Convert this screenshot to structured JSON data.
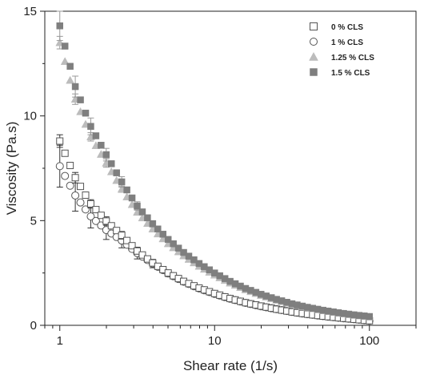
{
  "chart_data": {
    "type": "scatter",
    "title": "",
    "xlabel": "Shear rate (1/s)",
    "ylabel": "Viscosity (Pa.s)",
    "x_scale": "log",
    "xlim": [
      0.8,
      200
    ],
    "ylim": [
      0,
      15
    ],
    "x_ticks": [
      1,
      10,
      100
    ],
    "x_tick_labels": [
      "1",
      "10",
      "100"
    ],
    "y_ticks": [
      0,
      5,
      10,
      15
    ],
    "y_tick_labels": [
      "0",
      "5",
      "10",
      "15"
    ],
    "grid": false,
    "legend_position": "top-right",
    "x": [
      1.0,
      1.259,
      1.585,
      1.995,
      2.512,
      3.162,
      3.981,
      5.012,
      6.31,
      7.943,
      10.0,
      12.59,
      15.85,
      19.95,
      25.12,
      31.62,
      39.81,
      50.12,
      63.1,
      79.43,
      100.0
    ],
    "series": [
      {
        "name": "0 % CLS",
        "marker": "square-open",
        "color": "#555555",
        "values": [
          8.8,
          7.05,
          5.8,
          4.98,
          4.3,
          3.55,
          2.98,
          2.5,
          2.1,
          1.78,
          1.52,
          1.28,
          1.08,
          0.92,
          0.77,
          0.64,
          0.53,
          0.44,
          0.36,
          0.29,
          0.22
        ],
        "errors": [
          0.3,
          0.25,
          0.2,
          0.2,
          0.18,
          0.15,
          0.12,
          0.1,
          0.08,
          0.07,
          0.06,
          0.05,
          0.04,
          0.03,
          0.03,
          0.02,
          0.02,
          0.02,
          0.02,
          0.02,
          0.02
        ]
      },
      {
        "name": "1 % CLS",
        "marker": "circle-open",
        "color": "#555555",
        "values": [
          7.6,
          6.2,
          5.2,
          4.55,
          4.05,
          3.45,
          2.95,
          2.48,
          2.08,
          1.76,
          1.5,
          1.27,
          1.07,
          0.91,
          0.77,
          0.64,
          0.53,
          0.44,
          0.36,
          0.29,
          0.22
        ],
        "errors": [
          1.0,
          0.75,
          0.55,
          0.45,
          0.35,
          0.28,
          0.2,
          0.15,
          0.1,
          0.08,
          0.06,
          0.05,
          0.04,
          0.03,
          0.03,
          0.02,
          0.02,
          0.02,
          0.02,
          0.02,
          0.02
        ]
      },
      {
        "name": "1.25 % CLS",
        "marker": "triangle-filled",
        "color": "#bcbcbc",
        "values": [
          13.5,
          10.8,
          9.0,
          7.75,
          6.5,
          5.4,
          4.6,
          3.9,
          3.32,
          2.82,
          2.4,
          2.02,
          1.7,
          1.43,
          1.2,
          1.0,
          0.84,
          0.7,
          0.58,
          0.48,
          0.4
        ],
        "errors": [
          0.3,
          0.25,
          0.2,
          0.2,
          0.15,
          0.12,
          0.1,
          0.08,
          0.06,
          0.05,
          0.05,
          0.04,
          0.04,
          0.03,
          0.03,
          0.02,
          0.02,
          0.02,
          0.02,
          0.02,
          0.02
        ]
      },
      {
        "name": "1.5 % CLS",
        "marker": "square-filled",
        "color": "#7f7f7f",
        "values": [
          14.3,
          11.4,
          9.5,
          8.15,
          6.85,
          5.7,
          4.85,
          4.1,
          3.48,
          2.95,
          2.5,
          2.1,
          1.76,
          1.48,
          1.24,
          1.03,
          0.86,
          0.72,
          0.6,
          0.5,
          0.42
        ],
        "errors": [
          0.7,
          0.5,
          0.4,
          0.3,
          0.25,
          0.2,
          0.15,
          0.1,
          0.08,
          0.06,
          0.05,
          0.04,
          0.04,
          0.03,
          0.03,
          0.02,
          0.02,
          0.02,
          0.02,
          0.02,
          0.02
        ]
      }
    ]
  }
}
